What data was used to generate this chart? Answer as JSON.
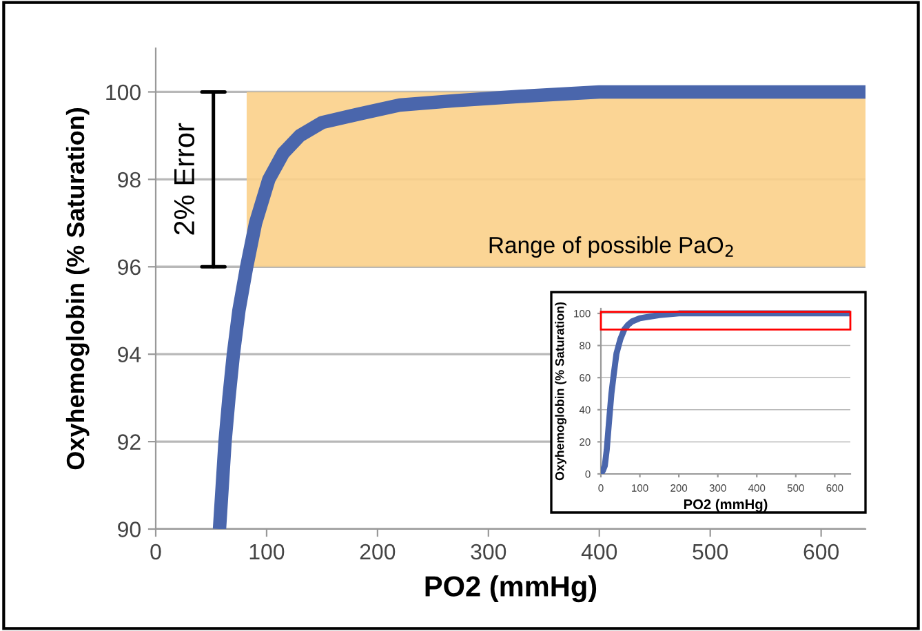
{
  "chart_data": [
    {
      "type": "line",
      "xlabel": "PO2 (mmHg)",
      "ylabel": "Oxyhemoglobin (% Saturation)",
      "x": [
        57.5,
        60,
        62.5,
        66,
        70,
        75,
        82,
        90,
        102,
        115,
        130,
        150,
        184,
        220,
        270,
        330,
        400,
        500,
        640
      ],
      "series": [
        {
          "color": "#4a66ac",
          "values": [
            90,
            91,
            92,
            93,
            94,
            95,
            96,
            97,
            98,
            98.6,
            99,
            99.3,
            99.5,
            99.7,
            99.8,
            99.9,
            100,
            100,
            100
          ]
        }
      ],
      "xlim": [
        0,
        640
      ],
      "ylim": [
        90,
        101
      ],
      "xticks": [
        0,
        100,
        200,
        300,
        400,
        500,
        600
      ],
      "yticks": [
        90,
        92,
        94,
        96,
        98,
        100
      ],
      "grid": "y",
      "marker": "none",
      "line_style": "solid",
      "bands": [
        {
          "axis": "y",
          "from": 96,
          "to": 100,
          "label": "Range of possible PaO$_{2}$",
          "color": "#fbd08a"
        }
      ],
      "annotations": [
        "2% Error"
      ]
    },
    {
      "type": "line",
      "xlabel": "PO2 (mmHg)",
      "ylabel": "Oxyhemoglobin (% Saturation)",
      "x": [
        0,
        5,
        10,
        15,
        20,
        27,
        33,
        40,
        50,
        60,
        70,
        80,
        100,
        125,
        150,
        200,
        300,
        400,
        640
      ],
      "series": [
        {
          "color": "#4a66ac",
          "values": [
            0,
            2,
            5,
            15,
            30,
            50,
            62,
            75,
            84,
            90,
            93,
            95,
            97,
            98,
            99,
            100,
            100,
            100,
            100
          ]
        }
      ],
      "xlim": [
        0,
        640
      ],
      "ylim": [
        0,
        103
      ],
      "xticks": [
        0,
        100,
        200,
        300,
        400,
        500,
        600
      ],
      "yticks": [
        0,
        20,
        40,
        60,
        80,
        100
      ],
      "grid": "y",
      "marker": "none",
      "line_style": "solid"
    }
  ]
}
